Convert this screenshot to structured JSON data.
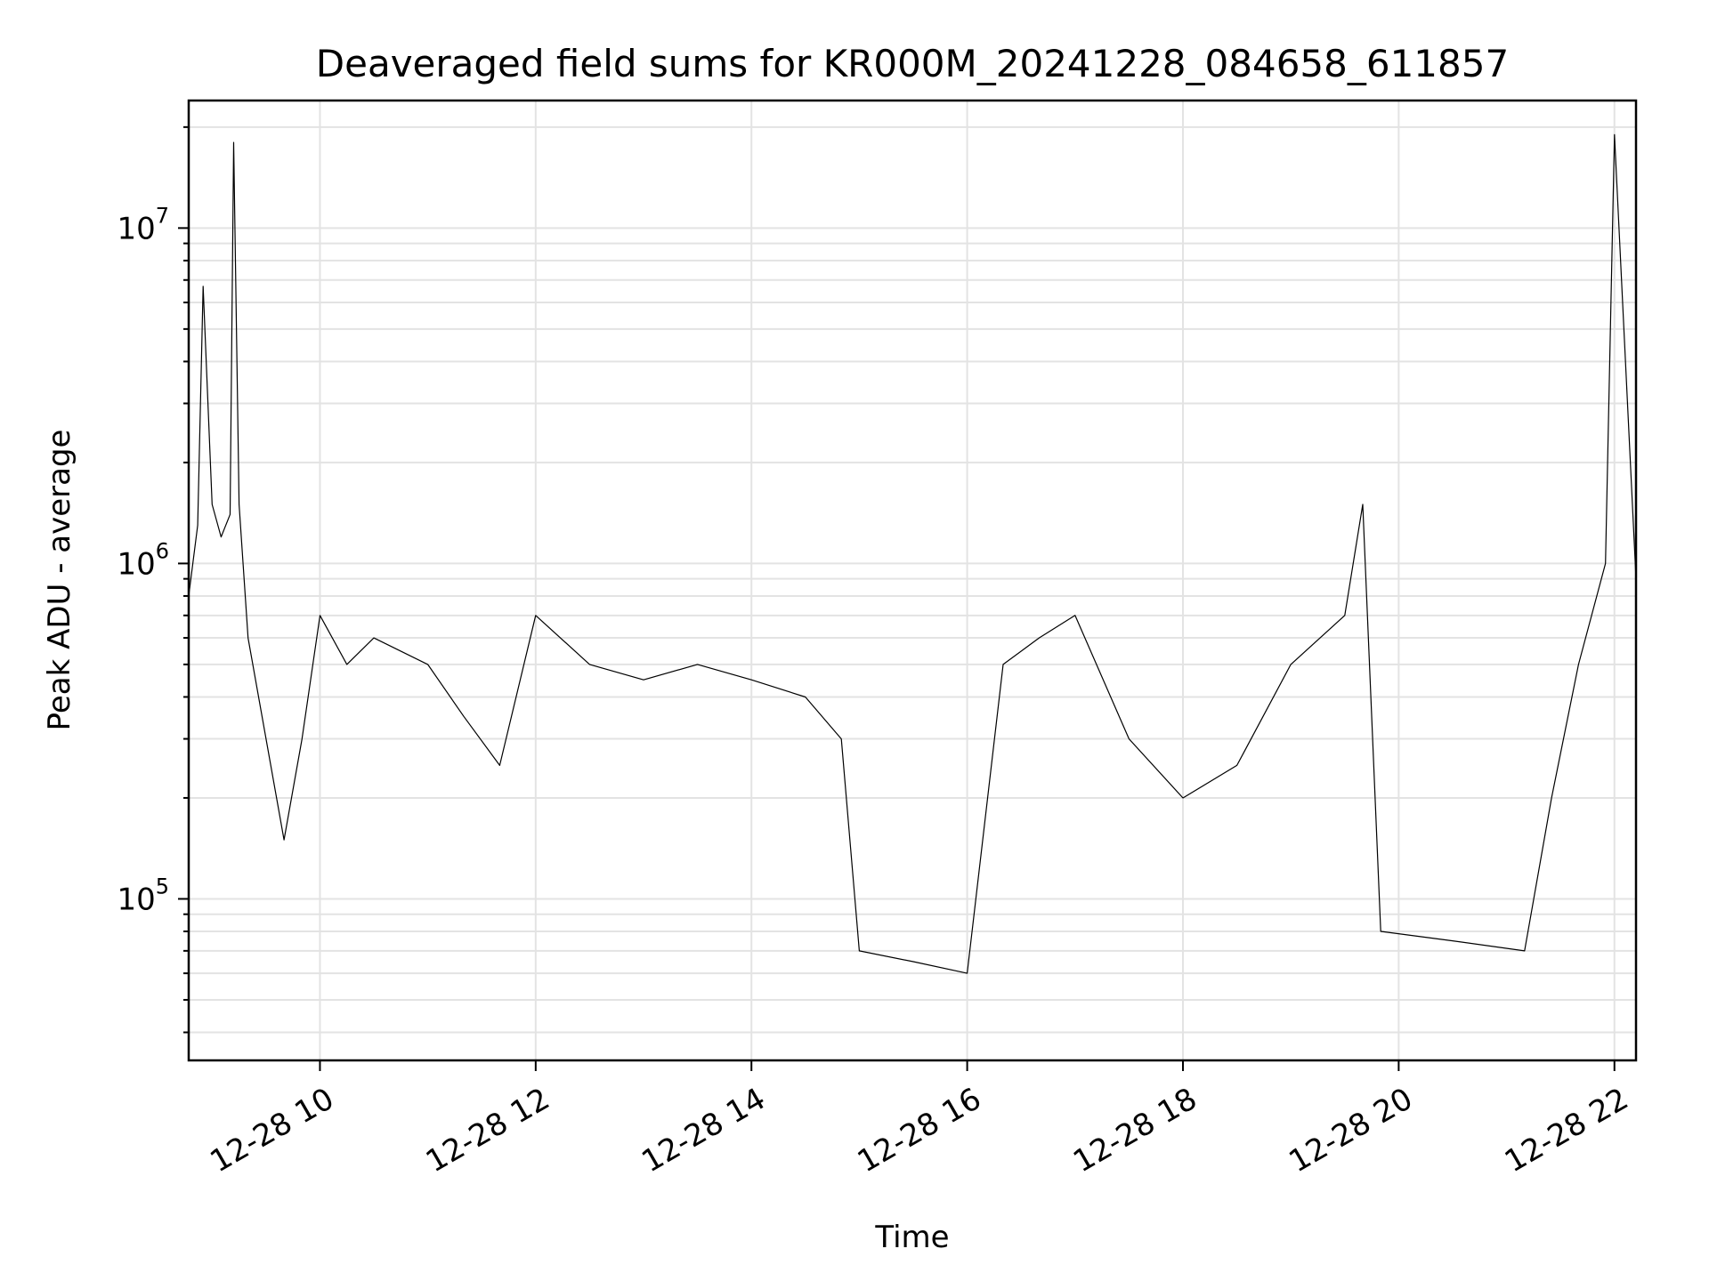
{
  "chart_data": {
    "type": "line",
    "title": "Deaveraged field sums for KR000M_20241228_084658_611857",
    "xlabel": "Time",
    "ylabel": "Peak ADU - average",
    "yscale": "log",
    "grid": true,
    "line_color": "#000000",
    "xlim": [
      "2024-12-28 08:47",
      "2024-12-28 22:12"
    ],
    "ylim": [
      33000,
      24000000
    ],
    "x_ticks": [
      {
        "value": "2024-12-28 10:00",
        "label": "12-28 10"
      },
      {
        "value": "2024-12-28 12:00",
        "label": "12-28 12"
      },
      {
        "value": "2024-12-28 14:00",
        "label": "12-28 14"
      },
      {
        "value": "2024-12-28 16:00",
        "label": "12-28 16"
      },
      {
        "value": "2024-12-28 18:00",
        "label": "12-28 18"
      },
      {
        "value": "2024-12-28 20:00",
        "label": "12-28 20"
      },
      {
        "value": "2024-12-28 22:00",
        "label": "12-28 22"
      }
    ],
    "y_ticks": [
      {
        "value": 100000,
        "base": "10",
        "exp": "5"
      },
      {
        "value": 1000000,
        "base": "10",
        "exp": "6"
      },
      {
        "value": 10000000,
        "base": "10",
        "exp": "7"
      }
    ],
    "series": [
      {
        "x": [
          "2024-12-28 08:47",
          "2024-12-28 08:52",
          "2024-12-28 08:55",
          "2024-12-28 09:00",
          "2024-12-28 09:05",
          "2024-12-28 09:10",
          "2024-12-28 09:12",
          "2024-12-28 09:15",
          "2024-12-28 09:20",
          "2024-12-28 09:30",
          "2024-12-28 09:40",
          "2024-12-28 09:50",
          "2024-12-28 10:00",
          "2024-12-28 10:15",
          "2024-12-28 10:30",
          "2024-12-28 11:00",
          "2024-12-28 11:20",
          "2024-12-28 11:40",
          "2024-12-28 12:00",
          "2024-12-28 12:30",
          "2024-12-28 13:00",
          "2024-12-28 13:30",
          "2024-12-28 14:00",
          "2024-12-28 14:30",
          "2024-12-28 14:50",
          "2024-12-28 15:00",
          "2024-12-28 15:30",
          "2024-12-28 16:00",
          "2024-12-28 16:20",
          "2024-12-28 16:40",
          "2024-12-28 17:00",
          "2024-12-28 17:30",
          "2024-12-28 18:00",
          "2024-12-28 18:30",
          "2024-12-28 19:00",
          "2024-12-28 19:30",
          "2024-12-28 19:40",
          "2024-12-28 19:50",
          "2024-12-28 20:30",
          "2024-12-28 21:10",
          "2024-12-28 21:25",
          "2024-12-28 21:40",
          "2024-12-28 21:55",
          "2024-12-28 22:00",
          "2024-12-28 22:12"
        ],
        "y": [
          800000,
          1300000,
          6700000,
          1500000,
          1200000,
          1400000,
          18000000,
          1500000,
          600000,
          300000,
          150000,
          300000,
          700000,
          500000,
          600000,
          500000,
          350000,
          250000,
          700000,
          500000,
          450000,
          500000,
          450000,
          400000,
          300000,
          70000,
          65000,
          60000,
          500000,
          600000,
          700000,
          300000,
          200000,
          250000,
          500000,
          700000,
          1500000,
          80000,
          75000,
          70000,
          200000,
          500000,
          1000000,
          19000000,
          900000
        ]
      }
    ]
  }
}
